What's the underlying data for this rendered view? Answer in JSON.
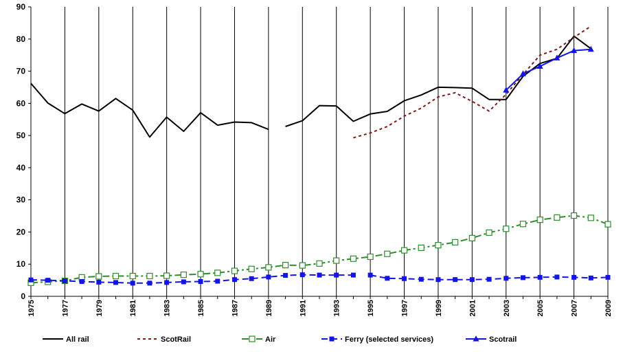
{
  "chart_data": {
    "type": "line",
    "title": "",
    "xlabel": "",
    "ylabel": "",
    "xlim": [
      1975,
      2009
    ],
    "ylim": [
      0,
      90
    ],
    "y_ticks": [
      "0",
      "10",
      "20",
      "30",
      "40",
      "50",
      "60",
      "70",
      "80",
      "90"
    ],
    "x_tick_labels": [
      "1975",
      "1977",
      "1979",
      "1981",
      "1983",
      "1985",
      "1987",
      "1989",
      "1991",
      "1993",
      "1995",
      "1997",
      "1999",
      "2001",
      "2003",
      "2005",
      "2007",
      "2009"
    ],
    "grid": "vertical",
    "legend_position": "bottom",
    "series": [
      {
        "name": "All rail",
        "color": "#000000",
        "style": "solid",
        "marker": "none",
        "points": [
          [
            1975,
            66.2
          ],
          [
            1976,
            60.1
          ],
          [
            1977,
            56.8
          ],
          [
            1978,
            59.8
          ],
          [
            1979,
            57.6
          ],
          [
            1980,
            61.5
          ],
          [
            1981,
            57.9
          ],
          [
            1982,
            49.5
          ],
          [
            1983,
            55.7
          ],
          [
            1984,
            51.3
          ],
          [
            1985,
            57.1
          ],
          [
            1986,
            53.2
          ],
          [
            1987,
            54.2
          ],
          [
            1988,
            54
          ],
          [
            1989,
            51.9
          ],
          null,
          [
            1990,
            52.8
          ],
          [
            1991,
            54.6
          ],
          [
            1992,
            59.3
          ],
          [
            1993,
            59.2
          ],
          [
            1994,
            54.4
          ],
          [
            1995,
            56.7
          ],
          [
            1996,
            57.5
          ],
          [
            1997,
            60.8
          ],
          [
            1998,
            62.6
          ],
          [
            1999,
            65
          ],
          [
            2000,
            64.9
          ],
          [
            2001,
            64.7
          ],
          [
            2002,
            61.2
          ],
          [
            2003,
            61.2
          ],
          [
            2004,
            68.4
          ],
          [
            2005,
            72.4
          ],
          [
            2006,
            74
          ],
          [
            2007,
            80.9
          ],
          [
            2008,
            77
          ]
        ]
      },
      {
        "name": "ScotRail",
        "color": "#7b1a1a",
        "style": "dotted",
        "marker": "none",
        "points": [
          [
            1994,
            49.3
          ],
          [
            1995,
            50.8
          ],
          [
            1996,
            52.8
          ],
          [
            1997,
            56
          ],
          [
            1998,
            58.5
          ],
          [
            1999,
            62
          ],
          [
            2000,
            63.3
          ],
          [
            2001,
            60.6
          ],
          [
            2002,
            57.6
          ],
          [
            2003,
            62.8
          ],
          [
            2004,
            69
          ],
          [
            2005,
            75
          ],
          [
            2006,
            76.8
          ],
          [
            2007,
            80.5
          ],
          [
            2008,
            84
          ]
        ]
      },
      {
        "name": "Air",
        "color": "#2e8b2e",
        "style": "dashdot",
        "marker": "open-square",
        "points": [
          [
            1975,
            4.2
          ],
          [
            1976,
            4.5
          ],
          [
            1977,
            4.8
          ],
          [
            1978,
            5.9
          ],
          [
            1979,
            6.2
          ],
          [
            1980,
            6.3
          ],
          [
            1981,
            6.3
          ],
          [
            1982,
            6.3
          ],
          [
            1983,
            6.4
          ],
          [
            1984,
            6.7
          ],
          [
            1985,
            6.9
          ],
          [
            1986,
            7.3
          ],
          [
            1987,
            7.9
          ],
          [
            1988,
            8.5
          ],
          [
            1989,
            9
          ],
          [
            1990,
            9.7
          ],
          [
            1991,
            9.6
          ],
          [
            1992,
            10.2
          ],
          [
            1993,
            11.1
          ],
          [
            1994,
            11.7
          ],
          [
            1995,
            12.3
          ],
          [
            1996,
            13.2
          ],
          [
            1997,
            14.3
          ],
          [
            1998,
            15.1
          ],
          [
            1999,
            15.9
          ],
          [
            2000,
            16.8
          ],
          [
            2001,
            18.1
          ],
          [
            2002,
            19.8
          ],
          [
            2003,
            21
          ],
          [
            2004,
            22.5
          ],
          [
            2005,
            23.8
          ],
          [
            2006,
            24.5
          ],
          [
            2007,
            25.1
          ],
          [
            2008,
            24.4
          ],
          [
            2009,
            22.4
          ]
        ]
      },
      {
        "name": "Ferry (selected services)",
        "color": "#1414e6",
        "style": "dashed",
        "marker": "filled-square",
        "points": [
          [
            1975,
            5.1
          ],
          [
            1976,
            5
          ],
          [
            1977,
            4.8
          ],
          [
            1978,
            4.6
          ],
          [
            1979,
            4.4
          ],
          [
            1980,
            4.3
          ],
          [
            1981,
            4.1
          ],
          [
            1982,
            4.1
          ],
          [
            1983,
            4.3
          ],
          [
            1984,
            4.5
          ],
          [
            1985,
            4.6
          ],
          [
            1986,
            4.7
          ],
          [
            1987,
            5.2
          ],
          [
            1988,
            5.5
          ],
          [
            1989,
            6
          ],
          [
            1990,
            6.5
          ],
          [
            1991,
            6.7
          ],
          [
            1992,
            6.6
          ],
          [
            1993,
            6.6
          ],
          [
            1994,
            6.6
          ],
          null,
          [
            1995,
            6.6
          ],
          [
            1996,
            5.6
          ],
          [
            1997,
            5.5
          ],
          [
            1998,
            5.3
          ],
          [
            1999,
            5.2
          ],
          [
            2000,
            5.2
          ],
          [
            2001,
            5.2
          ],
          [
            2002,
            5.3
          ],
          [
            2003,
            5.6
          ],
          [
            2004,
            5.8
          ],
          [
            2005,
            5.9
          ],
          [
            2006,
            6
          ],
          [
            2007,
            5.9
          ],
          [
            2008,
            5.7
          ],
          [
            2009,
            5.9
          ]
        ]
      },
      {
        "name": "Scotrail",
        "color": "#1414e6",
        "style": "solid",
        "marker": "filled-triangle",
        "points": [
          [
            2003,
            64.1
          ],
          [
            2004,
            69.2
          ],
          [
            2005,
            71.5
          ],
          [
            2006,
            74.1
          ],
          [
            2007,
            76.4
          ],
          [
            2008,
            76.8
          ]
        ]
      }
    ]
  }
}
